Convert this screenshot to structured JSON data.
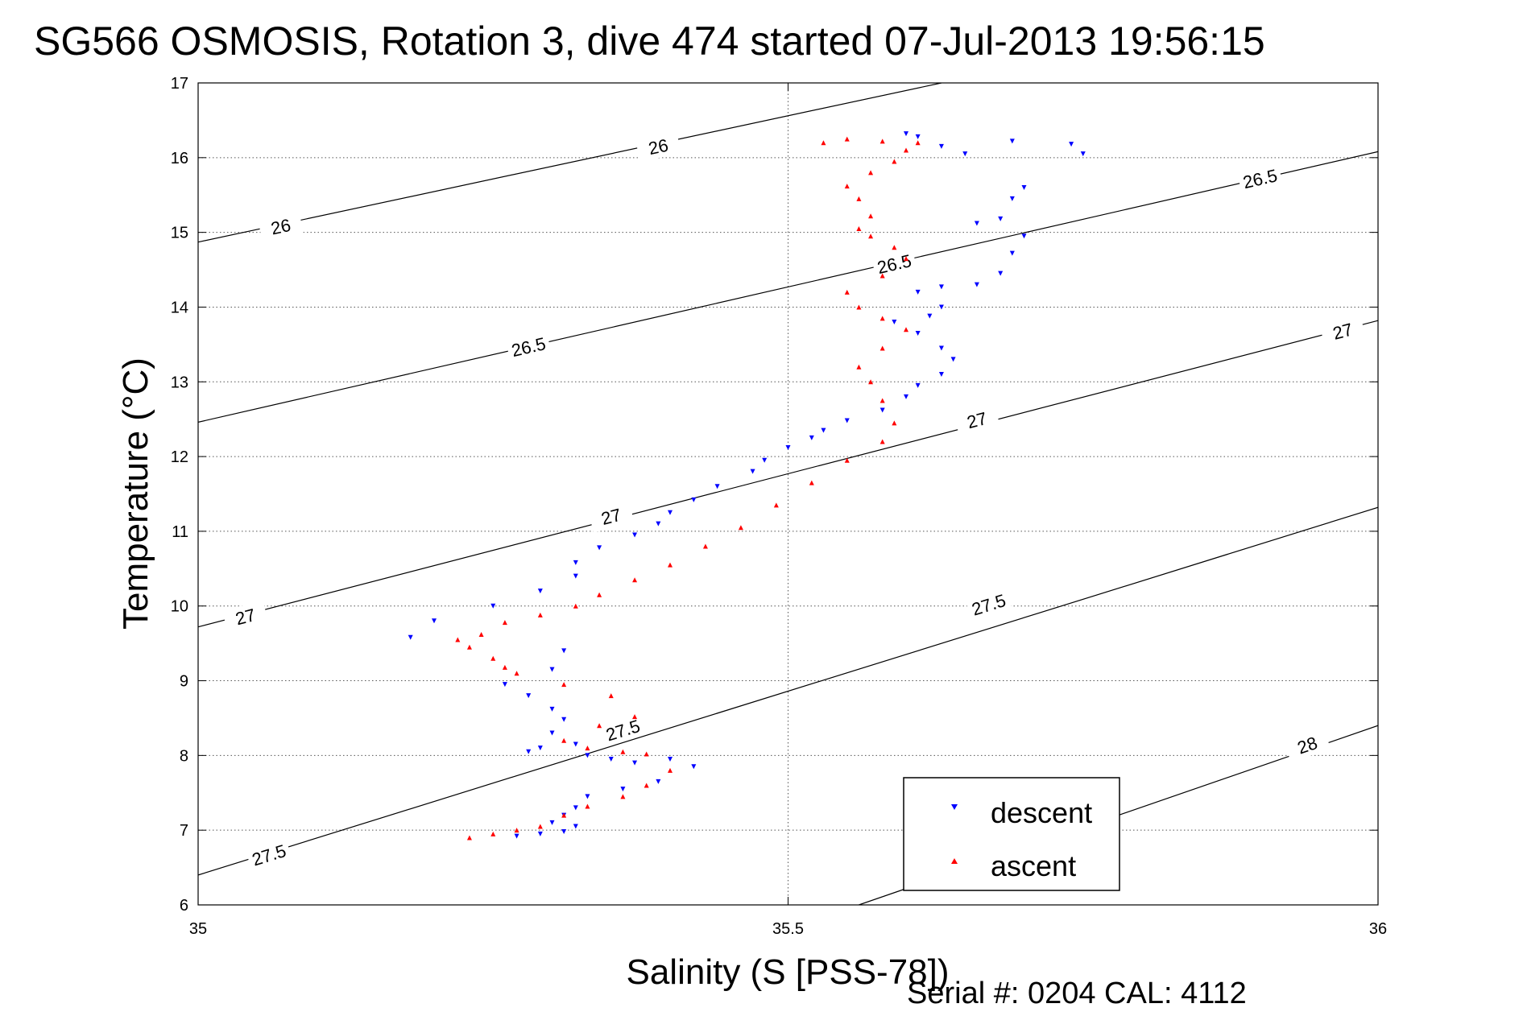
{
  "chart_data": {
    "type": "scatter",
    "title": "SG566 OSMOSIS, Rotation 3, dive 474 started 07-Jul-2013 19:56:15",
    "xlabel": "Salinity (S [PSS-78])",
    "ylabel": "Temperature (°C)",
    "xlim": [
      35,
      36
    ],
    "ylim": [
      6,
      17
    ],
    "x_ticks": [
      35,
      35.5,
      36
    ],
    "x_tick_labels": [
      "35",
      "35.5",
      "36"
    ],
    "y_ticks": [
      6,
      7,
      8,
      9,
      10,
      11,
      12,
      13,
      14,
      15,
      16,
      17
    ],
    "y_tick_labels": [
      "6",
      "7",
      "8",
      "9",
      "10",
      "11",
      "12",
      "13",
      "14",
      "15",
      "16",
      "17"
    ],
    "grid": true,
    "legend_position": "bottom-right",
    "legend": [
      {
        "label": "descent",
        "color": "#0000ff",
        "marker": "triangle-down"
      },
      {
        "label": "ascent",
        "color": "#ff0000",
        "marker": "triangle-up"
      }
    ],
    "density_contours": [
      {
        "level": "26",
        "line": [
          [
            35,
            14.87
          ],
          [
            35.63,
            17
          ]
        ],
        "labels": [
          [
            35.07,
            15.08
          ],
          [
            35.39,
            16.15
          ]
        ]
      },
      {
        "level": "26.5",
        "line": [
          [
            35,
            12.46
          ],
          [
            36,
            16.08
          ]
        ],
        "labels": [
          [
            35.28,
            13.47
          ],
          [
            35.59,
            14.58
          ],
          [
            35.9,
            15.72
          ]
        ]
      },
      {
        "level": "27",
        "line": [
          [
            35,
            9.72
          ],
          [
            36,
            13.82
          ]
        ],
        "labels": [
          [
            35.04,
            9.86
          ],
          [
            35.35,
            11.2
          ],
          [
            35.66,
            12.49
          ],
          [
            35.97,
            13.68
          ]
        ]
      },
      {
        "level": "27.5",
        "line": [
          [
            35,
            6.4
          ],
          [
            36,
            11.32
          ]
        ],
        "labels": [
          [
            35.06,
            6.67
          ],
          [
            35.36,
            8.34
          ],
          [
            35.67,
            10.02
          ]
        ]
      },
      {
        "level": "28",
        "line": [
          [
            35.56,
            6
          ],
          [
            36,
            8.4
          ]
        ],
        "labels": [
          [
            35.94,
            8.14
          ]
        ]
      }
    ],
    "series": [
      {
        "name": "descent",
        "color": "#0000ff",
        "marker": "triangle-down",
        "x": [
          35.6,
          35.61,
          35.63,
          35.65,
          35.69,
          35.74,
          35.75,
          35.7,
          35.69,
          35.68,
          35.66,
          35.7,
          35.69,
          35.68,
          35.66,
          35.63,
          35.61,
          35.63,
          35.62,
          35.59,
          35.61,
          35.63,
          35.64,
          35.63,
          35.61,
          35.6,
          35.58,
          35.55,
          35.53,
          35.52,
          35.5,
          35.48,
          35.47,
          35.44,
          35.42,
          35.4,
          35.39,
          35.37,
          35.34,
          35.32,
          35.32,
          35.29,
          35.25,
          35.2,
          35.18,
          35.31,
          35.3,
          35.26,
          35.28,
          35.3,
          35.31,
          35.3,
          35.32,
          35.29,
          35.28,
          35.33,
          35.35,
          35.37,
          35.4,
          35.42,
          35.39,
          35.36,
          35.33,
          35.32,
          35.31,
          35.3,
          35.32,
          35.31,
          35.29,
          35.27
        ],
        "y": [
          16.32,
          16.28,
          16.15,
          16.05,
          16.22,
          16.18,
          16.05,
          15.6,
          15.45,
          15.18,
          15.12,
          14.95,
          14.72,
          14.45,
          14.3,
          14.27,
          14.2,
          14.0,
          13.88,
          13.8,
          13.65,
          13.45,
          13.3,
          13.1,
          12.95,
          12.8,
          12.62,
          12.48,
          12.35,
          12.25,
          12.12,
          11.95,
          11.8,
          11.6,
          11.42,
          11.25,
          11.1,
          10.95,
          10.78,
          10.58,
          10.4,
          10.2,
          10.0,
          9.8,
          9.58,
          9.4,
          9.15,
          8.95,
          8.8,
          8.62,
          8.48,
          8.3,
          8.15,
          8.1,
          8.05,
          8.0,
          7.95,
          7.9,
          7.95,
          7.85,
          7.65,
          7.55,
          7.45,
          7.3,
          7.2,
          7.1,
          7.05,
          6.98,
          6.95,
          6.92
        ]
      },
      {
        "name": "ascent",
        "color": "#ff0000",
        "marker": "triangle-up",
        "x": [
          35.23,
          35.25,
          35.27,
          35.29,
          35.31,
          35.33,
          35.36,
          35.38,
          35.4,
          35.38,
          35.36,
          35.33,
          35.31,
          35.34,
          35.37,
          35.35,
          35.31,
          35.27,
          35.26,
          35.25,
          35.23,
          35.22,
          35.24,
          35.26,
          35.29,
          35.32,
          35.34,
          35.37,
          35.4,
          35.43,
          35.46,
          35.49,
          35.52,
          35.55,
          35.58,
          35.59,
          35.58,
          35.57,
          35.56,
          35.58,
          35.6,
          35.58,
          35.56,
          35.55,
          35.58,
          35.6,
          35.59,
          35.57,
          35.56,
          35.57,
          35.56,
          35.55,
          35.57,
          35.59,
          35.6,
          35.61,
          35.58,
          35.55,
          35.53
        ],
        "y": [
          6.9,
          6.95,
          7.0,
          7.05,
          7.2,
          7.32,
          7.45,
          7.6,
          7.8,
          8.02,
          8.05,
          8.1,
          8.2,
          8.4,
          8.52,
          8.8,
          8.95,
          9.1,
          9.18,
          9.3,
          9.45,
          9.55,
          9.62,
          9.78,
          9.88,
          10.0,
          10.15,
          10.35,
          10.55,
          10.8,
          11.05,
          11.35,
          11.65,
          11.95,
          12.2,
          12.45,
          12.75,
          13.0,
          13.2,
          13.45,
          13.7,
          13.85,
          14.0,
          14.2,
          14.42,
          14.65,
          14.8,
          14.95,
          15.05,
          15.22,
          15.45,
          15.62,
          15.8,
          15.95,
          16.1,
          16.2,
          16.22,
          16.25,
          16.2
        ]
      }
    ]
  },
  "footer": {
    "serial_text": "Serial #: 0204  CAL: 4112"
  }
}
